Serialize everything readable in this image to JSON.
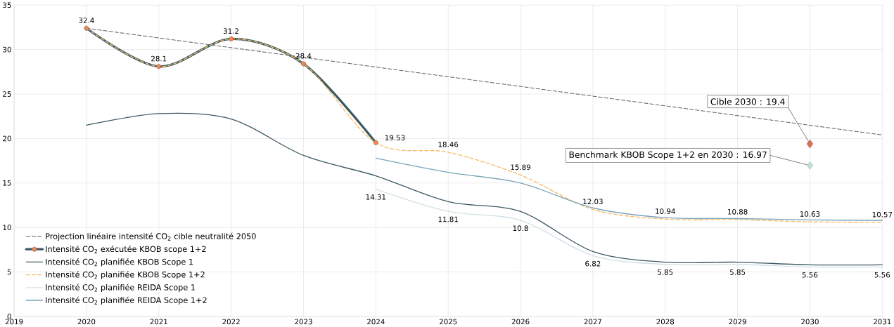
{
  "chart_data": {
    "type": "line",
    "xlim": [
      2019,
      2031
    ],
    "xticks": [
      2019,
      2020,
      2021,
      2022,
      2023,
      2024,
      2025,
      2026,
      2027,
      2028,
      2029,
      2030,
      2031
    ],
    "ylim": [
      0,
      35
    ],
    "yticks": [
      0,
      5,
      10,
      15,
      20,
      25,
      30,
      35
    ],
    "grid": true,
    "legend": "bottom left",
    "series": [
      {
        "name": "Projection linéaire intensité CO$_{2}$ cible neutralité 2050",
        "color": "#333333",
        "line_style": "dashed",
        "marker": "none",
        "x": [
          2020,
          2031
        ],
        "values": [
          32.4,
          20.4
        ]
      },
      {
        "name": "Intensité CO$_{2}$ exécutée KBOB scope 1+2",
        "color": "#3d5a64",
        "line_style": "solid",
        "marker": "circle",
        "x": [
          2020,
          2021,
          2022,
          2023,
          2024
        ],
        "values": [
          32.4,
          28.1,
          31.2,
          28.4,
          19.53
        ],
        "value_labels": [
          "32.4",
          "28.1",
          "31.2",
          "28.4",
          null
        ]
      },
      {
        "name": "Intensité CO$_{2}$ planifiée KBOB Scope 1",
        "color": "#3d5a64",
        "line_style": "solid",
        "marker": "none",
        "x": [
          2020,
          2021,
          2022,
          2023,
          2024,
          2025,
          2026,
          2027,
          2028,
          2029,
          2030,
          2031
        ],
        "values": [
          21.5,
          22.8,
          22.2,
          18.1,
          15.8,
          12.9,
          11.8,
          7.3,
          6.1,
          6.1,
          5.8,
          5.8
        ]
      },
      {
        "name": "Intensité CO$_{2}$ planifiée KBOB Scope 1+2",
        "color": "#f7bb6a",
        "line_style": "dashed",
        "marker": "none",
        "x": [
          2020,
          2021,
          2022,
          2023,
          2024,
          2025,
          2026,
          2027,
          2028,
          2029,
          2030,
          2031
        ],
        "values": [
          32.4,
          28.1,
          31.2,
          28.4,
          19.53,
          18.46,
          15.89,
          12.03,
          10.94,
          10.88,
          10.63,
          10.57
        ],
        "value_labels": [
          null,
          null,
          null,
          null,
          "19.53",
          "18.46",
          "15.89",
          "12.03",
          "10.94",
          "10.88",
          "10.63",
          "10.57"
        ]
      },
      {
        "name": "Intensité CO$_{2}$ planifiée REIDA Scope 1",
        "color": "#d3e0e7",
        "line_style": "solid",
        "marker": "none",
        "x": [
          2024,
          2025,
          2026,
          2027,
          2028,
          2029,
          2030,
          2031
        ],
        "values": [
          14.31,
          11.81,
          10.8,
          6.82,
          5.85,
          5.85,
          5.56,
          5.56
        ],
        "value_labels": [
          "14.31",
          "11.81",
          "10.8",
          "6.82",
          "5.85",
          "5.85",
          "5.56",
          "5.56"
        ]
      },
      {
        "name": "Intensité CO$_{2}$ planifiée REIDA Scope 1+2",
        "color": "#7aa3b8",
        "line_style": "solid",
        "marker": "none",
        "x": [
          2024,
          2025,
          2026,
          2027,
          2028,
          2029,
          2030,
          2031
        ],
        "values": [
          17.8,
          16.2,
          15.0,
          12.2,
          11.1,
          11.0,
          10.85,
          10.8
        ]
      },
      {
        "type": "scatter",
        "color": "#d0735a",
        "marker": "diamond",
        "x": [
          2030
        ],
        "values": [
          19.4
        ]
      },
      {
        "type": "scatter",
        "color": "#c2dbd0",
        "marker": "diamond",
        "x": [
          2030
        ],
        "values": [
          16.97
        ]
      }
    ],
    "annotations": [
      {
        "text": "Cible 2030 : 19.4",
        "x": 2030,
        "y": 19.4
      },
      {
        "text": "Benchmark KBOB Scope 1+2 en 2030 : 16.97",
        "x": 2030,
        "y": 16.97
      }
    ]
  }
}
